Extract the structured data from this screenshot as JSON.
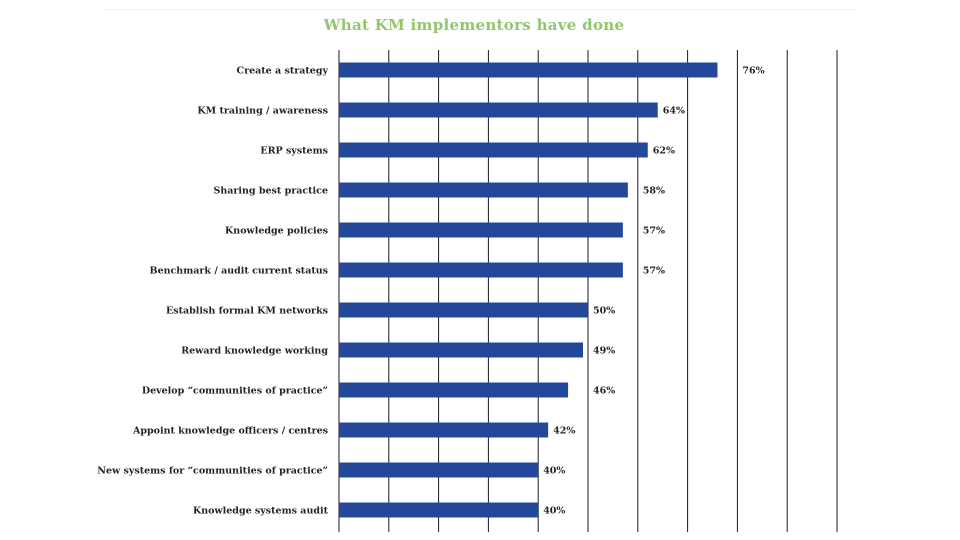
{
  "chart_data": {
    "type": "bar",
    "orientation": "horizontal",
    "title": "What KM implementors have done",
    "categories": [
      "Create a strategy",
      "KM training / awareness",
      "ERP systems",
      "Sharing best practice",
      "Knowledge policies",
      "Benchmark / audit current status",
      "Establish formal KM networks",
      "Reward knowledge working",
      "Develop “communities of practice”",
      "Appoint knowledge officers / centres",
      "New systems for “communities of practice”",
      "Knowledge systems audit"
    ],
    "values": [
      76,
      64,
      62,
      58,
      57,
      57,
      50,
      49,
      46,
      42,
      40,
      40
    ],
    "value_labels": [
      "76%",
      "64%",
      "62%",
      "58%",
      "57%",
      "57%",
      "50%",
      "49%",
      "46%",
      "42%",
      "40%",
      "40%"
    ],
    "xlim": [
      0,
      100
    ],
    "x_gridlines": [
      10,
      20,
      30,
      40,
      50,
      60,
      70,
      80,
      90,
      100
    ],
    "grid": true,
    "legend": "none",
    "bar_color": "#23479a",
    "title_color": "#92c66e"
  }
}
